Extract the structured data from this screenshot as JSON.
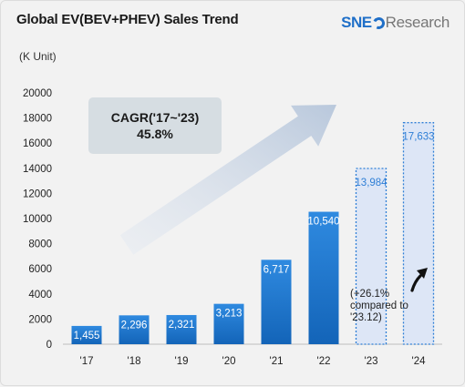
{
  "header": {
    "title": "Global EV(BEV+PHEV) Sales Trend",
    "unit": "(K Unit)",
    "logo_primary": "SNE",
    "logo_secondary": "Research"
  },
  "cagr": {
    "line1": "CAGR('17~'23)",
    "line2": "45.8%"
  },
  "note": "(+26.1% compared to '23.12)",
  "colors": {
    "actual_top": "#2f8ae0",
    "actual_bottom": "#1364b8",
    "forecast_fill": "#dde6f6",
    "forecast_border": "#2f7fd6",
    "forecast_text": "#2f7fd6",
    "arrow": "#c9d5e6"
  },
  "chart_data": {
    "type": "bar",
    "categories": [
      "'17",
      "'18",
      "'19",
      "'20",
      "'21",
      "'22",
      "'23",
      "'24"
    ],
    "values": [
      1455,
      2296,
      2321,
      3213,
      6717,
      10540,
      13984,
      17633
    ],
    "value_labels": [
      "1,455",
      "2,296",
      "2,321",
      "3,213",
      "6,717",
      "10,540",
      "13,984",
      "17,633"
    ],
    "forecast": [
      false,
      false,
      false,
      false,
      false,
      false,
      true,
      true
    ],
    "ylim": [
      0,
      20000
    ],
    "yticks": [
      0,
      2000,
      4000,
      6000,
      8000,
      10000,
      12000,
      14000,
      16000,
      18000,
      20000
    ],
    "ytick_labels": [
      "0",
      "2000",
      "4000",
      "6000",
      "8000",
      "10000",
      "12000",
      "14000",
      "16000",
      "18000",
      "20000"
    ],
    "title": "Global EV(BEV+PHEV) Sales Trend",
    "ylabel": "(K Unit)",
    "xlabel": "",
    "grid": false
  }
}
